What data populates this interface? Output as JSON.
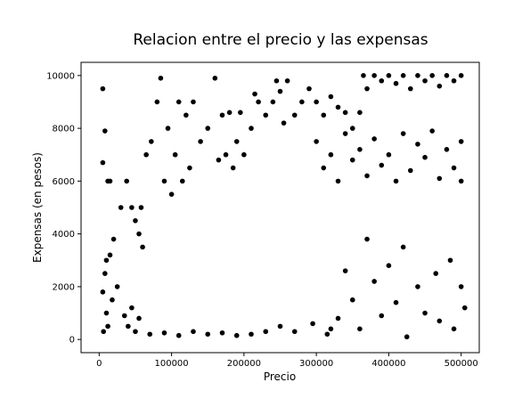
{
  "chart_data": {
    "type": "scatter",
    "title": "Relacion entre el precio y las expensas",
    "xlabel": "Precio",
    "ylabel": "Expensas (en pesos)",
    "xlim": [
      -25000,
      525000
    ],
    "ylim": [
      -500,
      10500
    ],
    "xticks": [
      0,
      100000,
      200000,
      300000,
      400000,
      500000
    ],
    "yticks": [
      0,
      2000,
      4000,
      6000,
      8000,
      10000
    ],
    "marker_color": "#000000",
    "grid": false,
    "legend": "none",
    "series": [
      {
        "points": [
          [
            5000,
            9500
          ],
          [
            8000,
            7900
          ],
          [
            5000,
            6700
          ],
          [
            12000,
            6000
          ],
          [
            15000,
            6000
          ],
          [
            20000,
            3800
          ],
          [
            10000,
            3000
          ],
          [
            15000,
            3200
          ],
          [
            8000,
            2500
          ],
          [
            5000,
            1800
          ],
          [
            25000,
            2000
          ],
          [
            18000,
            1500
          ],
          [
            10000,
            1000
          ],
          [
            12000,
            500
          ],
          [
            6000,
            300
          ],
          [
            30000,
            5000
          ],
          [
            38000,
            6000
          ],
          [
            45000,
            5000
          ],
          [
            50000,
            4500
          ],
          [
            55000,
            4000
          ],
          [
            58000,
            5000
          ],
          [
            60000,
            3500
          ],
          [
            65000,
            7000
          ],
          [
            72000,
            7500
          ],
          [
            80000,
            9000
          ],
          [
            85000,
            9900
          ],
          [
            90000,
            6000
          ],
          [
            95000,
            8000
          ],
          [
            100000,
            5500
          ],
          [
            105000,
            7000
          ],
          [
            110000,
            9000
          ],
          [
            115000,
            6000
          ],
          [
            120000,
            8500
          ],
          [
            125000,
            6500
          ],
          [
            130000,
            9000
          ],
          [
            140000,
            7500
          ],
          [
            150000,
            8000
          ],
          [
            160000,
            9900
          ],
          [
            165000,
            6800
          ],
          [
            170000,
            8500
          ],
          [
            175000,
            7000
          ],
          [
            180000,
            8600
          ],
          [
            185000,
            6500
          ],
          [
            190000,
            7500
          ],
          [
            195000,
            8600
          ],
          [
            200000,
            7000
          ],
          [
            210000,
            8000
          ],
          [
            215000,
            9300
          ],
          [
            220000,
            9000
          ],
          [
            230000,
            8500
          ],
          [
            240000,
            9000
          ],
          [
            245000,
            9800
          ],
          [
            250000,
            9400
          ],
          [
            255000,
            8200
          ],
          [
            260000,
            9800
          ],
          [
            270000,
            8500
          ],
          [
            280000,
            9000
          ],
          [
            290000,
            9500
          ],
          [
            300000,
            9000
          ],
          [
            310000,
            8500
          ],
          [
            320000,
            9200
          ],
          [
            330000,
            8800
          ],
          [
            340000,
            8600
          ],
          [
            350000,
            8000
          ],
          [
            360000,
            8600
          ],
          [
            365000,
            10000
          ],
          [
            370000,
            9500
          ],
          [
            380000,
            10000
          ],
          [
            390000,
            9800
          ],
          [
            400000,
            10000
          ],
          [
            410000,
            9700
          ],
          [
            420000,
            10000
          ],
          [
            430000,
            9500
          ],
          [
            440000,
            10000
          ],
          [
            450000,
            9800
          ],
          [
            460000,
            10000
          ],
          [
            470000,
            9600
          ],
          [
            480000,
            10000
          ],
          [
            490000,
            9800
          ],
          [
            500000,
            10000
          ],
          [
            300000,
            7500
          ],
          [
            320000,
            7000
          ],
          [
            340000,
            7800
          ],
          [
            360000,
            7200
          ],
          [
            380000,
            7600
          ],
          [
            400000,
            7000
          ],
          [
            420000,
            7800
          ],
          [
            440000,
            7400
          ],
          [
            460000,
            7900
          ],
          [
            480000,
            7200
          ],
          [
            500000,
            7500
          ],
          [
            310000,
            6500
          ],
          [
            330000,
            6000
          ],
          [
            350000,
            6800
          ],
          [
            370000,
            6200
          ],
          [
            390000,
            6600
          ],
          [
            410000,
            6000
          ],
          [
            430000,
            6400
          ],
          [
            450000,
            6900
          ],
          [
            470000,
            6100
          ],
          [
            490000,
            6500
          ],
          [
            500000,
            6000
          ],
          [
            360000,
            400
          ],
          [
            425000,
            100
          ],
          [
            390000,
            900
          ],
          [
            410000,
            1400
          ],
          [
            450000,
            1000
          ],
          [
            470000,
            700
          ],
          [
            490000,
            400
          ],
          [
            505000,
            1200
          ],
          [
            500000,
            2000
          ],
          [
            485000,
            3000
          ],
          [
            465000,
            2500
          ],
          [
            440000,
            2000
          ],
          [
            420000,
            3500
          ],
          [
            400000,
            2800
          ],
          [
            380000,
            2200
          ],
          [
            370000,
            3800
          ],
          [
            350000,
            1500
          ],
          [
            340000,
            2600
          ],
          [
            330000,
            800
          ],
          [
            320000,
            400
          ],
          [
            315000,
            200
          ],
          [
            295000,
            600
          ],
          [
            270000,
            300
          ],
          [
            250000,
            500
          ],
          [
            230000,
            300
          ],
          [
            210000,
            200
          ],
          [
            190000,
            150
          ],
          [
            170000,
            250
          ],
          [
            150000,
            200
          ],
          [
            130000,
            300
          ],
          [
            110000,
            150
          ],
          [
            90000,
            250
          ],
          [
            70000,
            200
          ],
          [
            50000,
            300
          ],
          [
            40000,
            500
          ],
          [
            35000,
            900
          ],
          [
            45000,
            1200
          ],
          [
            55000,
            800
          ]
        ]
      }
    ]
  }
}
